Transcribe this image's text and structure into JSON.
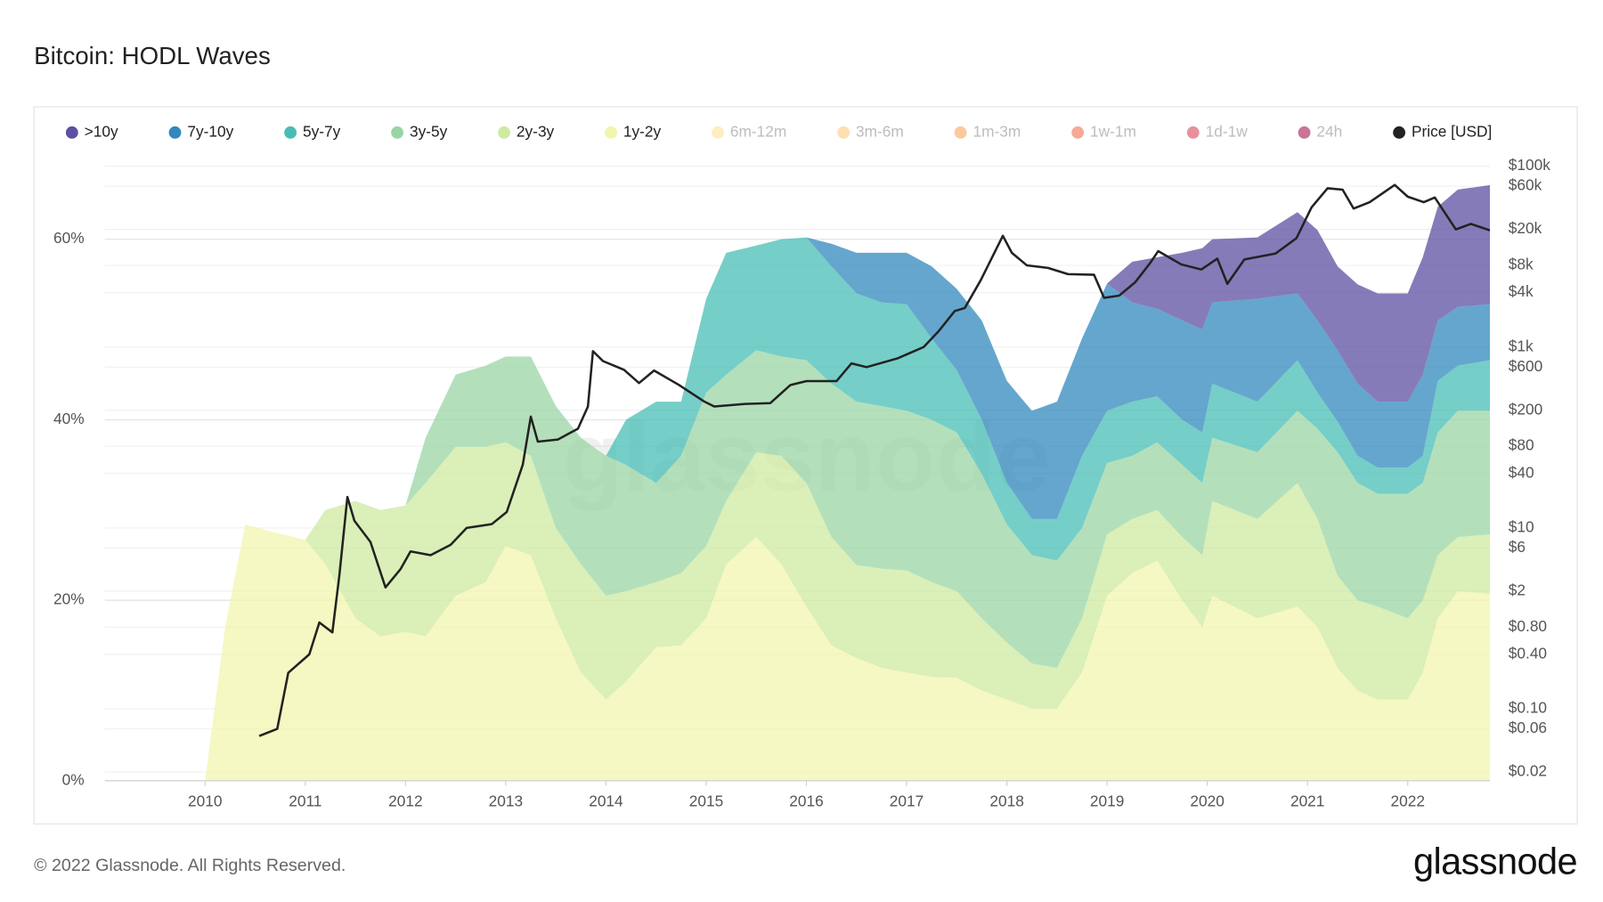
{
  "chart_data": {
    "type": "area",
    "title": "Bitcoin: HODL Waves",
    "x": [
      2010.0,
      2010.2,
      2010.4,
      2010.7,
      2011.0,
      2011.2,
      2011.5,
      2011.75,
      2012.0,
      2012.2,
      2012.5,
      2012.8,
      2013.0,
      2013.25,
      2013.5,
      2013.75,
      2014.0,
      2014.2,
      2014.5,
      2014.75,
      2015.0,
      2015.2,
      2015.5,
      2015.75,
      2016.0,
      2016.25,
      2016.5,
      2016.75,
      2017.0,
      2017.25,
      2017.5,
      2017.75,
      2018.0,
      2018.25,
      2018.5,
      2018.75,
      2019.0,
      2019.25,
      2019.5,
      2019.75,
      2019.95,
      2020.05,
      2020.5,
      2020.9,
      2021.1,
      2021.3,
      2021.5,
      2021.7,
      2022.0,
      2022.15,
      2022.3,
      2022.5,
      2022.82
    ],
    "xlim": [
      2009.0,
      2022.82
    ],
    "xticks": [
      2010,
      2011,
      2012,
      2013,
      2014,
      2015,
      2016,
      2017,
      2018,
      2019,
      2020,
      2021,
      2022
    ],
    "ylim": [
      0,
      70
    ],
    "yticks": [
      {
        "value": 0,
        "label": "0%"
      },
      {
        "value": 20,
        "label": "20%"
      },
      {
        "value": 40,
        "label": "40%"
      },
      {
        "value": 60,
        "label": "60%"
      }
    ],
    "y2scale": "log",
    "y2lim": [
      0.016,
      155000
    ],
    "y2ticks": [
      {
        "value": 0.02,
        "label": "$0.02"
      },
      {
        "value": 0.06,
        "label": "$0.06"
      },
      {
        "value": 0.1,
        "label": "$0.10"
      },
      {
        "value": 0.4,
        "label": "$0.40"
      },
      {
        "value": 0.8,
        "label": "$0.80"
      },
      {
        "value": 2,
        "label": "$2"
      },
      {
        "value": 6,
        "label": "$6"
      },
      {
        "value": 10,
        "label": "$10"
      },
      {
        "value": 40,
        "label": "$40"
      },
      {
        "value": 80,
        "label": "$80"
      },
      {
        "value": 200,
        "label": "$200"
      },
      {
        "value": 600,
        "label": "$600"
      },
      {
        "value": 1000,
        "label": "$1k"
      },
      {
        "value": 4000,
        "label": "$4k"
      },
      {
        "value": 8000,
        "label": "$8k"
      },
      {
        "value": 20000,
        "label": "$20k"
      },
      {
        "value": 60000,
        "label": "$60k"
      },
      {
        "value": 100000,
        "label": "$100k"
      }
    ],
    "grid": true,
    "stacked": true,
    "series": [
      {
        "name": ">10y",
        "color": "#5e4fa2",
        "values": [
          0,
          0,
          0,
          0,
          0,
          0,
          0,
          0,
          0,
          0,
          0,
          0,
          0,
          0,
          0,
          0,
          0,
          0,
          0,
          0,
          0,
          0,
          0,
          0,
          0,
          0,
          0,
          0,
          0,
          0,
          0,
          0,
          0,
          0,
          0,
          0,
          0,
          4.5,
          5.7,
          7.5,
          9,
          7,
          6.8,
          9,
          10,
          9.3,
          11,
          12,
          12,
          13,
          12.6,
          13,
          13.2
        ]
      },
      {
        "name": "7y-10y",
        "color": "#3288bd",
        "values": [
          0,
          0,
          0,
          0,
          0,
          0,
          0,
          0,
          0,
          0,
          0,
          0,
          0,
          0,
          0,
          0,
          0,
          0,
          0,
          0,
          0,
          0,
          0,
          0,
          0,
          2.5,
          4.5,
          5.5,
          5.7,
          8,
          9,
          11,
          11.3,
          12,
          13,
          13,
          14.1,
          11,
          9.7,
          11,
          11.4,
          9,
          11.4,
          7.4,
          8,
          7.9,
          8,
          7.3,
          7.3,
          9,
          6.7,
          6.5,
          6.2
        ]
      },
      {
        "name": "5y-7y",
        "color": "#48bdb5",
        "values": [
          0,
          0,
          0,
          0,
          0,
          0,
          0,
          0,
          0,
          0,
          0,
          0,
          0,
          0,
          0,
          0,
          0,
          5,
          9,
          6,
          10.4,
          13.5,
          11.6,
          13,
          13.6,
          13,
          12,
          11.5,
          11.8,
          9,
          6.9,
          6,
          4.6,
          4,
          4.6,
          8,
          5.8,
          6,
          5.1,
          5,
          5.6,
          6,
          5.6,
          5.6,
          4,
          3.4,
          3,
          2.9,
          2.9,
          3,
          5.7,
          5,
          5.6
        ]
      },
      {
        "name": "3y-5y",
        "color": "#99d5a4",
        "values": [
          0,
          0,
          0,
          0,
          0,
          0,
          0,
          0,
          0,
          5,
          8,
          9,
          9.5,
          11,
          13.5,
          14,
          15.5,
          14,
          11,
          13,
          17,
          14,
          11.3,
          11,
          13.6,
          17,
          18.1,
          18,
          17.7,
          18,
          17.6,
          16,
          13.1,
          12,
          11.9,
          10,
          7.9,
          7,
          7.5,
          8,
          8,
          7,
          7.4,
          8,
          10,
          13.7,
          13,
          12.5,
          13.8,
          13,
          13.6,
          14,
          13.7
        ]
      },
      {
        "name": "2y-3y",
        "color": "#cfeaa0",
        "values": [
          0,
          0,
          0,
          0,
          0,
          6,
          13,
          14,
          14,
          17,
          16.5,
          15,
          11.5,
          11,
          10,
          12,
          11.5,
          10,
          7.2,
          8,
          8,
          7,
          9.4,
          12,
          13.7,
          12,
          10.3,
          11,
          11.3,
          10.5,
          9.6,
          8,
          6.3,
          5,
          4.5,
          6,
          6.8,
          6,
          5.6,
          7,
          8,
          10.5,
          11,
          13.7,
          12,
          10.2,
          10,
          10.3,
          9,
          8,
          7,
          6,
          6.6
        ]
      },
      {
        "name": "1y-2y",
        "color": "#f2f5ad",
        "values": [
          0,
          17,
          28.4,
          27.5,
          26.7,
          24,
          18,
          16,
          16.5,
          16,
          20.5,
          22,
          26,
          25,
          18,
          12,
          9,
          11,
          14.8,
          15,
          18,
          24,
          27,
          24,
          19.3,
          15,
          13.6,
          12.5,
          12,
          11.5,
          11.4,
          10,
          9,
          8,
          8,
          12,
          20.5,
          23,
          24.4,
          20,
          17,
          20.5,
          18,
          19.3,
          17,
          12.5,
          10,
          9,
          9,
          12,
          18,
          21,
          20.7
        ]
      },
      {
        "name": "Price [USD]",
        "color": "#222222",
        "axis": "y2",
        "type": "line",
        "x": [
          2010.54,
          2010.72,
          2010.83,
          2011.04,
          2011.14,
          2011.27,
          2011.34,
          2011.42,
          2011.49,
          2011.65,
          2011.8,
          2011.95,
          2012.05,
          2012.25,
          2012.45,
          2012.61,
          2012.86,
          2013.01,
          2013.17,
          2013.25,
          2013.32,
          2013.52,
          2013.72,
          2013.82,
          2013.87,
          2013.97,
          2014.18,
          2014.33,
          2014.48,
          2014.73,
          2014.98,
          2015.08,
          2015.39,
          2015.64,
          2015.84,
          2016.0,
          2016.3,
          2016.45,
          2016.6,
          2016.91,
          2017.17,
          2017.32,
          2017.48,
          2017.58,
          2017.74,
          2017.96,
          2018.05,
          2018.2,
          2018.41,
          2018.61,
          2018.87,
          2018.97,
          2019.12,
          2019.28,
          2019.43,
          2019.51,
          2019.74,
          2019.94,
          2020.1,
          2020.2,
          2020.37,
          2020.68,
          2020.89,
          2021.04,
          2021.2,
          2021.35,
          2021.46,
          2021.62,
          2021.87,
          2022.0,
          2022.16,
          2022.27,
          2022.48,
          2022.63,
          2022.82
        ],
        "values": [
          0.05,
          0.06,
          0.25,
          0.4,
          0.9,
          0.7,
          3,
          22,
          12,
          7,
          2.2,
          3.5,
          5.5,
          5,
          6.5,
          10,
          11,
          15,
          50,
          170,
          90,
          95,
          125,
          220,
          900,
          700,
          560,
          400,
          550,
          380,
          250,
          220,
          235,
          240,
          380,
          420,
          420,
          660,
          600,
          750,
          1000,
          1500,
          2500,
          2700,
          5500,
          17000,
          11000,
          8000,
          7500,
          6400,
          6300,
          3500,
          3700,
          5200,
          8500,
          11500,
          8200,
          7200,
          9500,
          5000,
          9300,
          10800,
          16000,
          35000,
          57000,
          55000,
          34000,
          40000,
          62000,
          46000,
          40000,
          45000,
          20000,
          23000,
          19500
        ]
      }
    ],
    "hidden_series": [
      {
        "name": "6m-12m",
        "color": "#fee08b"
      },
      {
        "name": "3m-6m",
        "color": "#fdc571"
      },
      {
        "name": "1m-3m",
        "color": "#f89c4b"
      },
      {
        "name": "1w-1m",
        "color": "#f0603f"
      },
      {
        "name": "1d-1w",
        "color": "#d9344c"
      },
      {
        "name": "24h",
        "color": "#9e0142"
      }
    ]
  },
  "watermark": "glassnode",
  "copyright": "© 2022 Glassnode. All Rights Reserved.",
  "logo": "glassnode"
}
